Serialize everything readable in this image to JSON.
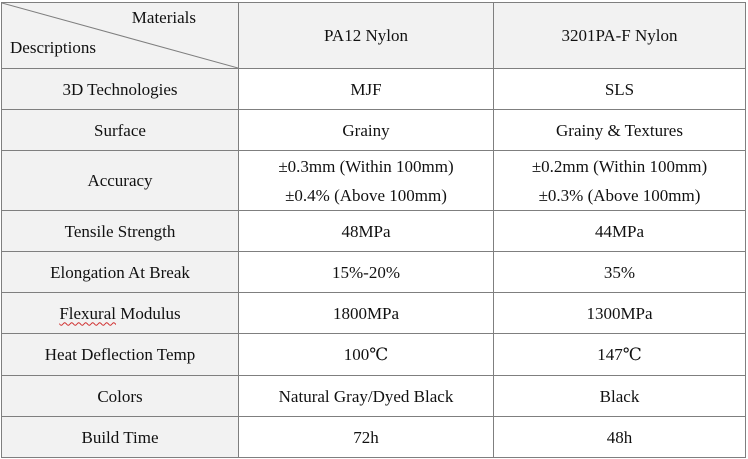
{
  "header": {
    "diag_top": "Materials",
    "diag_bottom": "Descriptions",
    "materials": [
      "PA12 Nylon",
      "3201PA-F Nylon"
    ]
  },
  "rows": [
    {
      "label": "3D Technologies",
      "values": [
        [
          "MJF"
        ],
        [
          "SLS"
        ]
      ]
    },
    {
      "label": "Surface",
      "values": [
        [
          "Grainy"
        ],
        [
          "Grainy & Textures"
        ]
      ]
    },
    {
      "label": "Accuracy",
      "values": [
        [
          "±0.3mm (Within 100mm)",
          "±0.4% (Above 100mm)"
        ],
        [
          "±0.2mm (Within 100mm)",
          "±0.3% (Above 100mm)"
        ]
      ]
    },
    {
      "label": "Tensile Strength",
      "values": [
        [
          "48MPa"
        ],
        [
          "44MPa"
        ]
      ]
    },
    {
      "label": "Elongation At Break",
      "values": [
        [
          "15%-20%"
        ],
        [
          "35%"
        ]
      ]
    },
    {
      "label_parts": [
        "Flexural",
        " Modulus"
      ],
      "values": [
        [
          "1800MPa"
        ],
        [
          "1300MPa"
        ]
      ]
    },
    {
      "label": "Heat Deflection Temp",
      "values": [
        [
          "100℃"
        ],
        [
          "147℃"
        ]
      ]
    },
    {
      "label": "Colors",
      "values": [
        [
          "Natural Gray/Dyed Black"
        ],
        [
          "Black"
        ]
      ]
    },
    {
      "label": "Build Time",
      "values": [
        [
          "72h"
        ],
        [
          "48h"
        ]
      ]
    }
  ]
}
